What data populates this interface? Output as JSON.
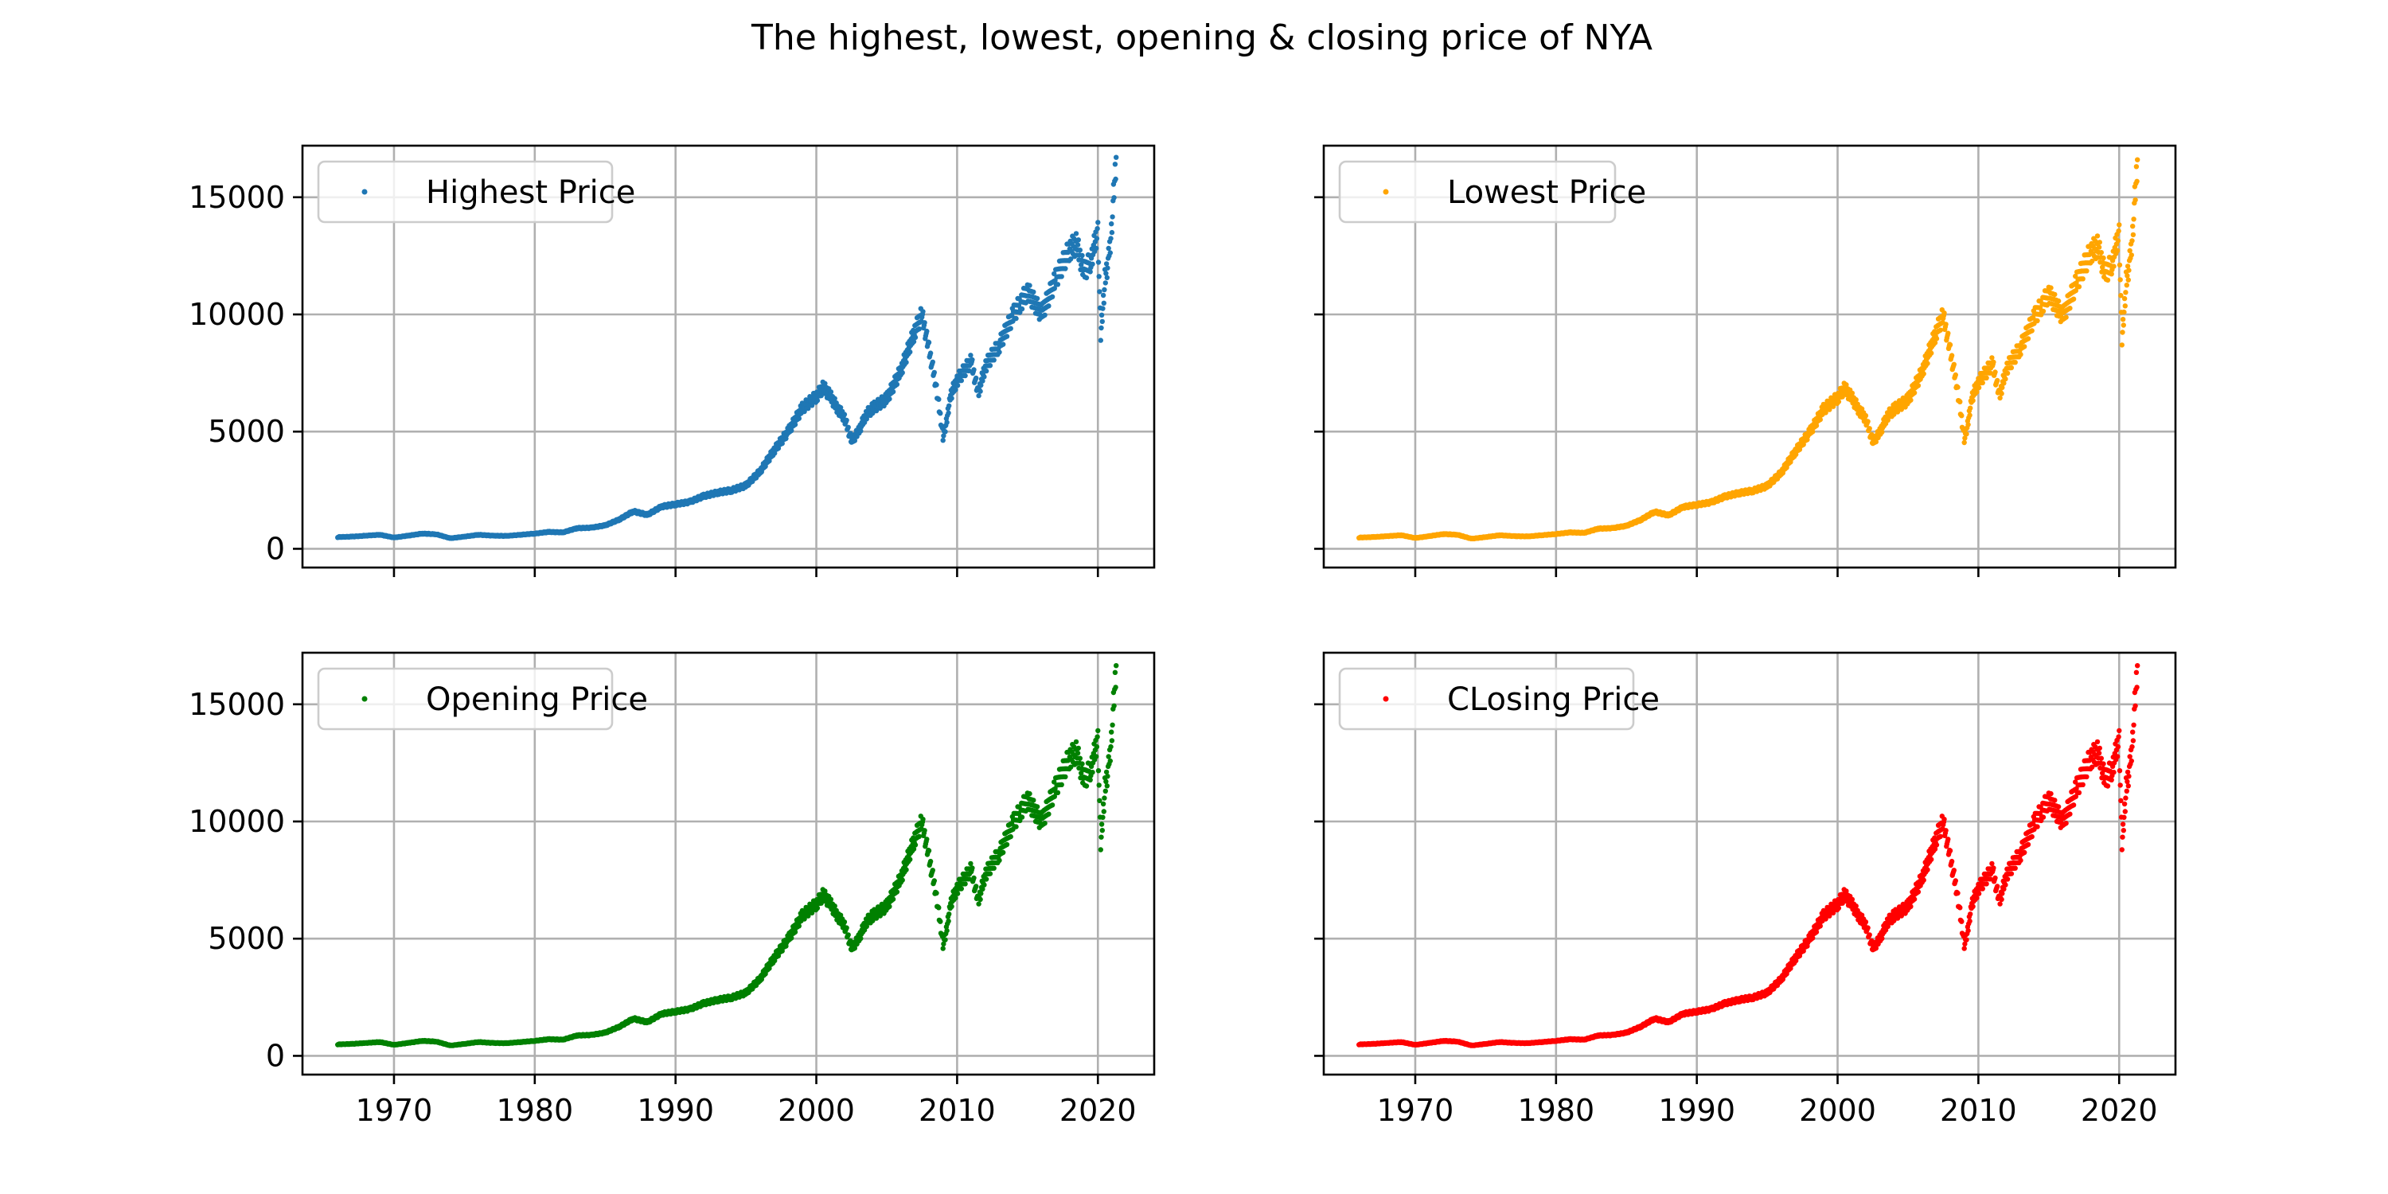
{
  "figure": {
    "title": "The highest, lowest, opening & closing price of NYA"
  },
  "chart_data": [
    {
      "type": "scatter",
      "series": [
        {
          "name": "Highest Price",
          "color": "#1f77b4",
          "x": [
            1966,
            1967,
            1968,
            1969,
            1970,
            1971,
            1972,
            1973,
            1974,
            1975,
            1976,
            1977,
            1978,
            1979,
            1980,
            1981,
            1982,
            1983,
            1984,
            1985,
            1986,
            1987,
            1988,
            1989,
            1990,
            1991,
            1992,
            1993,
            1994,
            1995,
            1996,
            1997,
            1998,
            1999,
            2000,
            2000.5,
            2001,
            2001.5,
            2002,
            2002.5,
            2003,
            2003.5,
            2004,
            2005,
            2006,
            2007,
            2007.5,
            2008,
            2008.5,
            2009,
            2009.2,
            2009.5,
            2010,
            2011,
            2011.5,
            2012,
            2013,
            2014,
            2014.5,
            2015,
            2016,
            2017,
            2018,
            2018.5,
            2019,
            2019.5,
            2020,
            2020.2,
            2020.5,
            2020.8,
            2021,
            2021.3
          ],
          "y": [
            500,
            520,
            560,
            600,
            480,
            560,
            650,
            620,
            450,
            520,
            600,
            560,
            550,
            600,
            650,
            720,
            700,
            880,
            900,
            1000,
            1250,
            1600,
            1450,
            1800,
            1900,
            2000,
            2250,
            2400,
            2500,
            2700,
            3300,
            4200,
            5000,
            6000,
            6500,
            6900,
            6500,
            6000,
            5600,
            4600,
            5000,
            5700,
            6000,
            6400,
            7600,
            9300,
            10000,
            8500,
            7000,
            4800,
            5200,
            6500,
            7200,
            8000,
            6600,
            7800,
            8700,
            10000,
            10500,
            11000,
            10000,
            11500,
            12800,
            13000,
            11800,
            12300,
            13600,
            9000,
            11500,
            12500,
            14000,
            16700
          ]
        }
      ],
      "ylim": [
        -800,
        17200
      ],
      "xlim": [
        1963.5,
        2024
      ],
      "yticks": [
        0,
        5000,
        10000,
        15000
      ],
      "xticks": [
        1970,
        1980,
        1990,
        2000,
        2010,
        2020
      ],
      "show_ytick_labels": true,
      "show_xtick_labels": false,
      "grid": true,
      "legend_position": "upper-left"
    },
    {
      "type": "scatter",
      "series": [
        {
          "name": "Lowest Price",
          "color": "#ffa500",
          "x": [
            1966,
            1967,
            1968,
            1969,
            1970,
            1971,
            1972,
            1973,
            1974,
            1975,
            1976,
            1977,
            1978,
            1979,
            1980,
            1981,
            1982,
            1983,
            1984,
            1985,
            1986,
            1987,
            1988,
            1989,
            1990,
            1991,
            1992,
            1993,
            1994,
            1995,
            1996,
            1997,
            1998,
            1999,
            2000,
            2000.5,
            2001,
            2001.5,
            2002,
            2002.5,
            2003,
            2003.5,
            2004,
            2005,
            2006,
            2007,
            2007.5,
            2008,
            2008.5,
            2009,
            2009.2,
            2009.5,
            2010,
            2011,
            2011.5,
            2012,
            2013,
            2014,
            2014.5,
            2015,
            2016,
            2017,
            2018,
            2018.5,
            2019,
            2019.5,
            2020,
            2020.2,
            2020.5,
            2020.8,
            2021,
            2021.3
          ],
          "y": [
            480,
            500,
            540,
            580,
            460,
            540,
            630,
            600,
            430,
            500,
            580,
            540,
            530,
            580,
            630,
            700,
            680,
            860,
            880,
            980,
            1230,
            1580,
            1430,
            1780,
            1880,
            1980,
            2230,
            2380,
            2480,
            2680,
            3250,
            4150,
            4950,
            5950,
            6450,
            6850,
            6450,
            5950,
            5550,
            4550,
            4950,
            5650,
            5950,
            6350,
            7550,
            9250,
            9950,
            8400,
            6900,
            4700,
            5100,
            6400,
            7100,
            7900,
            6500,
            7700,
            8600,
            9900,
            10400,
            10900,
            9900,
            11400,
            12700,
            12900,
            11700,
            12200,
            13500,
            8800,
            11400,
            12400,
            13900,
            16600
          ]
        }
      ],
      "ylim": [
        -800,
        17200
      ],
      "xlim": [
        1963.5,
        2024
      ],
      "yticks": [
        0,
        5000,
        10000,
        15000
      ],
      "xticks": [
        1970,
        1980,
        1990,
        2000,
        2010,
        2020
      ],
      "show_ytick_labels": false,
      "show_xtick_labels": false,
      "grid": true,
      "legend_position": "upper-left"
    },
    {
      "type": "scatter",
      "series": [
        {
          "name": "Opening Price",
          "color": "#008000",
          "x": [
            1966,
            1967,
            1968,
            1969,
            1970,
            1971,
            1972,
            1973,
            1974,
            1975,
            1976,
            1977,
            1978,
            1979,
            1980,
            1981,
            1982,
            1983,
            1984,
            1985,
            1986,
            1987,
            1988,
            1989,
            1990,
            1991,
            1992,
            1993,
            1994,
            1995,
            1996,
            1997,
            1998,
            1999,
            2000,
            2000.5,
            2001,
            2001.5,
            2002,
            2002.5,
            2003,
            2003.5,
            2004,
            2005,
            2006,
            2007,
            2007.5,
            2008,
            2008.5,
            2009,
            2009.2,
            2009.5,
            2010,
            2011,
            2011.5,
            2012,
            2013,
            2014,
            2014.5,
            2015,
            2016,
            2017,
            2018,
            2018.5,
            2019,
            2019.5,
            2020,
            2020.2,
            2020.5,
            2020.8,
            2021,
            2021.3
          ],
          "y": [
            490,
            510,
            550,
            590,
            470,
            550,
            640,
            610,
            440,
            510,
            590,
            550,
            540,
            590,
            640,
            710,
            690,
            870,
            890,
            990,
            1240,
            1590,
            1440,
            1790,
            1890,
            1990,
            2240,
            2390,
            2490,
            2690,
            3280,
            4180,
            4980,
            5980,
            6480,
            6880,
            6480,
            5980,
            5580,
            4580,
            4980,
            5680,
            5980,
            6380,
            7580,
            9280,
            9980,
            8450,
            6950,
            4750,
            5150,
            6450,
            7150,
            7950,
            6550,
            7750,
            8650,
            9950,
            10450,
            10950,
            9950,
            11450,
            12750,
            12950,
            11750,
            12250,
            13550,
            8900,
            11450,
            12450,
            13950,
            16650
          ]
        }
      ],
      "ylim": [
        -800,
        17200
      ],
      "xlim": [
        1963.5,
        2024
      ],
      "yticks": [
        0,
        5000,
        10000,
        15000
      ],
      "xticks": [
        1970,
        1980,
        1990,
        2000,
        2010,
        2020
      ],
      "show_ytick_labels": true,
      "show_xtick_labels": true,
      "grid": true,
      "legend_position": "upper-left"
    },
    {
      "type": "scatter",
      "series": [
        {
          "name": "CLosing Price",
          "color": "#ff0000",
          "x": [
            1966,
            1967,
            1968,
            1969,
            1970,
            1971,
            1972,
            1973,
            1974,
            1975,
            1976,
            1977,
            1978,
            1979,
            1980,
            1981,
            1982,
            1983,
            1984,
            1985,
            1986,
            1987,
            1988,
            1989,
            1990,
            1991,
            1992,
            1993,
            1994,
            1995,
            1996,
            1997,
            1998,
            1999,
            2000,
            2000.5,
            2001,
            2001.5,
            2002,
            2002.5,
            2003,
            2003.5,
            2004,
            2005,
            2006,
            2007,
            2007.5,
            2008,
            2008.5,
            2009,
            2009.2,
            2009.5,
            2010,
            2011,
            2011.5,
            2012,
            2013,
            2014,
            2014.5,
            2015,
            2016,
            2017,
            2018,
            2018.5,
            2019,
            2019.5,
            2020,
            2020.2,
            2020.5,
            2020.8,
            2021,
            2021.3
          ],
          "y": [
            490,
            510,
            550,
            590,
            470,
            550,
            640,
            610,
            440,
            510,
            590,
            550,
            540,
            590,
            640,
            710,
            690,
            870,
            890,
            990,
            1240,
            1590,
            1440,
            1790,
            1890,
            1990,
            2240,
            2390,
            2490,
            2690,
            3280,
            4180,
            4980,
            5980,
            6480,
            6880,
            6480,
            5980,
            5580,
            4580,
            4980,
            5680,
            5980,
            6380,
            7580,
            9280,
            9980,
            8450,
            6950,
            4750,
            5150,
            6450,
            7150,
            7950,
            6550,
            7750,
            8650,
            9950,
            10450,
            10950,
            9950,
            11450,
            12750,
            12950,
            11750,
            12250,
            13550,
            8900,
            11450,
            12450,
            13950,
            16650
          ]
        }
      ],
      "ylim": [
        -800,
        17200
      ],
      "xlim": [
        1963.5,
        2024
      ],
      "yticks": [
        0,
        5000,
        10000,
        15000
      ],
      "xticks": [
        1970,
        1980,
        1990,
        2000,
        2010,
        2020
      ],
      "show_ytick_labels": false,
      "show_xtick_labels": true,
      "grid": true,
      "legend_position": "upper-left"
    }
  ]
}
